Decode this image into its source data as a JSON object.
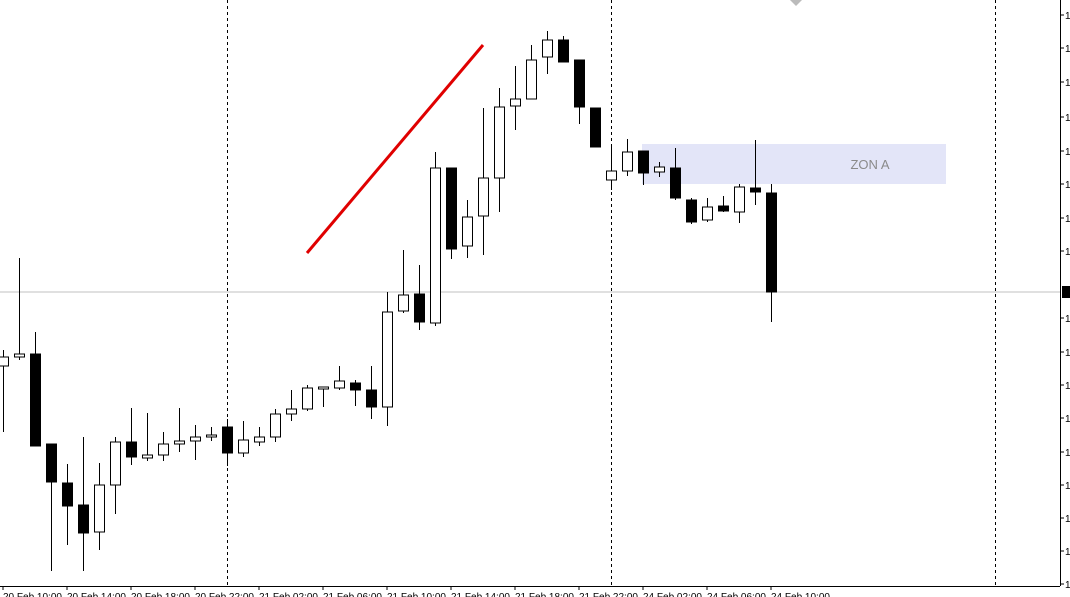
{
  "chart_data": {
    "type": "candlestick",
    "categories": [
      "20 Feb 10:00",
      null,
      null,
      null,
      "20 Feb 14:00",
      null,
      null,
      null,
      "20 Feb 18:00",
      null,
      null,
      null,
      "20 Feb 22:00",
      null,
      null,
      null,
      "21 Feb 02:00",
      null,
      null,
      null,
      "21 Feb 06:00",
      null,
      null,
      null,
      "21 Feb 10:00",
      null,
      null,
      null,
      "21 Feb 14:00",
      null,
      null,
      null,
      "21 Feb 18:00",
      null,
      null,
      null,
      "21 Feb 22:00",
      null,
      null,
      null,
      "24 Feb 02:00",
      null,
      null,
      null,
      "24 Feb 06:00",
      null,
      null,
      null,
      "24 Feb 10:00"
    ],
    "open": [
      231,
      240,
      243,
      153,
      114,
      92,
      65,
      112,
      155,
      139,
      142,
      153,
      156,
      160,
      170,
      144,
      155,
      160,
      183,
      188,
      208,
      209,
      214,
      207,
      190,
      286,
      303,
      274,
      429,
      351,
      381,
      419,
      491,
      498,
      540,
      557,
      537,
      489,
      417,
      426,
      446,
      425,
      429,
      397,
      377,
      391,
      385,
      409,
      404
    ],
    "high": [
      247,
      339,
      265,
      153,
      133,
      160,
      134,
      160,
      189,
      184,
      165,
      189,
      172,
      170,
      178,
      176,
      170,
      188,
      207,
      212,
      210,
      231,
      217,
      231,
      305,
      347,
      332,
      445,
      429,
      397,
      489,
      509,
      531,
      552,
      566,
      561,
      537,
      489,
      450,
      458,
      446,
      435,
      449,
      399,
      399,
      401,
      413,
      457,
      413
    ],
    "low": [
      165,
      237,
      151,
      26,
      52,
      26,
      47,
      83,
      132,
      136,
      136,
      145,
      137,
      156,
      131,
      140,
      151,
      155,
      176,
      186,
      190,
      207,
      191,
      178,
      171,
      284,
      267,
      271,
      338,
      339,
      342,
      385,
      467,
      498,
      523,
      535,
      473,
      450,
      407,
      421,
      412,
      420,
      397,
      373,
      375,
      385,
      374,
      392,
      275
    ],
    "close": [
      240,
      243,
      151,
      115,
      91,
      64,
      112,
      155,
      140,
      142,
      153,
      156,
      160,
      162,
      144,
      157,
      160,
      183,
      188,
      209,
      210,
      216,
      207,
      190,
      285,
      302,
      275,
      429,
      348,
      380,
      419,
      490,
      498,
      537,
      557,
      535,
      490,
      450,
      426,
      445,
      424,
      430,
      399,
      375,
      390,
      386,
      410,
      405,
      305
    ],
    "up_color": "#ffffff",
    "down_color": "#000000",
    "ylim": [
      0,
      597
    ],
    "yticks": [
      {
        "value": 582,
        "label": "1"
      },
      {
        "value": 549,
        "label": "1"
      },
      {
        "value": 515,
        "label": "1"
      },
      {
        "value": 480,
        "label": "1"
      },
      {
        "value": 446,
        "label": "1"
      },
      {
        "value": 413,
        "label": "1"
      },
      {
        "value": 379,
        "label": "1"
      },
      {
        "value": 346,
        "label": "1"
      },
      {
        "value": 279,
        "label": "1"
      },
      {
        "value": 245,
        "label": "1"
      },
      {
        "value": 212,
        "label": "1"
      },
      {
        "value": 179,
        "label": "1"
      },
      {
        "value": 145,
        "label": "1"
      },
      {
        "value": 112,
        "label": "1"
      },
      {
        "value": 79,
        "label": "1"
      },
      {
        "value": 46,
        "label": "1"
      },
      {
        "value": 13,
        "label": "1"
      }
    ],
    "price_line": 305,
    "separators": [
      14,
      38,
      62
    ],
    "trend_line": {
      "color": "#e00000",
      "x": [
        19,
        30
      ],
      "y": [
        344,
        552
      ]
    },
    "zone": {
      "label": "ZON A",
      "color": "#e3e5f8",
      "x": [
        40,
        59
      ],
      "y": [
        413,
        453
      ]
    }
  }
}
